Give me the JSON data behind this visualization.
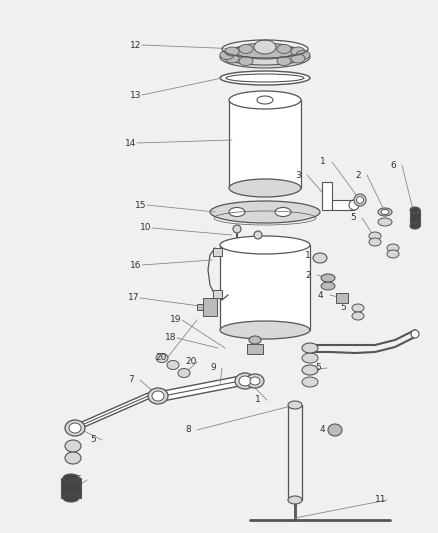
{
  "bg_color": "#f0f0f0",
  "fig_width": 4.38,
  "fig_height": 5.33,
  "lc": "#555555",
  "fc_light": "#d8d8d8",
  "fc_mid": "#bbbbbb",
  "fc_dark": "#444444",
  "label_color": "#333333",
  "line_color": "#888888",
  "label_fs": 6.5
}
